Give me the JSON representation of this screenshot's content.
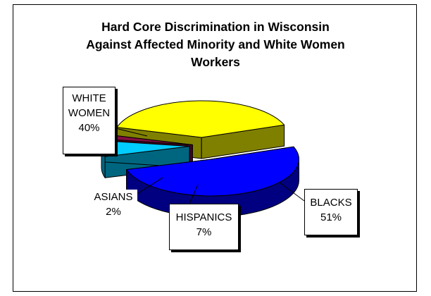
{
  "chart_data": {
    "type": "pie",
    "title_lines": [
      "Hard Core Discrimination in Wisconsin",
      "Against Affected Minority and White Women",
      "Workers"
    ],
    "slices": [
      {
        "label_lines": [
          "BLACKS"
        ],
        "value": 51,
        "value_text": "51%",
        "color": "#0000ff",
        "side_color": "#000080"
      },
      {
        "label_lines": [
          "HISPANICS"
        ],
        "value": 7,
        "value_text": "7%",
        "color": "#00ccff",
        "side_color": "#006680"
      },
      {
        "label_lines": [
          "ASIANS"
        ],
        "value": 2,
        "value_text": "2%",
        "color": "#7f0f3f",
        "side_color": "#3f0720"
      },
      {
        "label_lines": [
          "WHITE",
          "WOMEN"
        ],
        "value": 40,
        "value_text": "40%",
        "color": "#ffff00",
        "side_color": "#808000"
      }
    ],
    "style": "3d-exploded"
  }
}
